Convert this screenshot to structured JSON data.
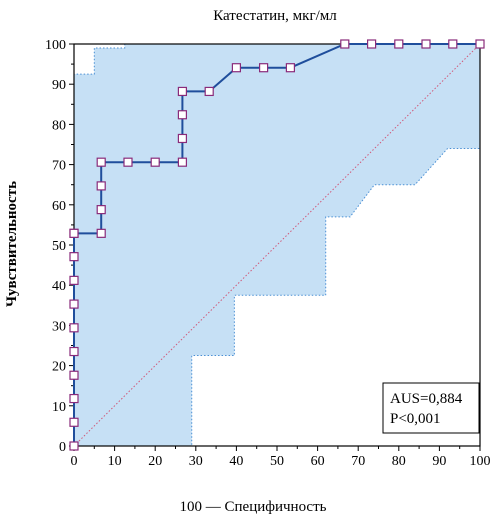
{
  "chart_data": {
    "type": "line",
    "title": "Катестатин, мкг/мл",
    "xlabel": "100 — Специфичность",
    "ylabel": "Чувствительность",
    "xlim": [
      0,
      100
    ],
    "ylim": [
      0,
      100
    ],
    "xticks": [
      0,
      10,
      20,
      30,
      40,
      50,
      60,
      70,
      80,
      90,
      100
    ],
    "yticks": [
      0,
      10,
      20,
      30,
      40,
      50,
      60,
      70,
      80,
      90,
      100
    ],
    "grid": false,
    "diagonal_reference": true,
    "colors": {
      "roc_line": "#1f4e9c",
      "marker_edge": "#8a2b7a",
      "ci_fill": "#c6e0f5",
      "ci_edge": "#4a8fd4",
      "diagonal": "#d05a7a"
    },
    "roc": {
      "x": [
        0,
        0,
        0,
        0,
        0,
        0,
        0,
        0,
        0,
        0,
        0,
        6.7,
        6.7,
        6.7,
        6.7,
        13.3,
        20,
        26.7,
        26.7,
        26.7,
        26.7,
        33.3,
        40,
        46.7,
        53.3,
        66.7,
        73.3,
        80,
        86.7,
        93.3,
        100
      ],
      "y": [
        0,
        5.9,
        11.8,
        17.6,
        23.5,
        29.4,
        35.3,
        41.2,
        47.1,
        52.9,
        52.9,
        52.9,
        58.8,
        64.7,
        70.6,
        70.6,
        70.6,
        70.6,
        76.5,
        82.4,
        88.2,
        88.2,
        94.1,
        94.1,
        94.1,
        100,
        100,
        100,
        100,
        100,
        100
      ]
    },
    "ci_upper": {
      "x": [
        0,
        0,
        5,
        5,
        12.5,
        12.5,
        100
      ],
      "y": [
        0,
        92.5,
        92.5,
        99,
        99,
        100,
        100
      ]
    },
    "ci_lower": {
      "x": [
        0,
        29,
        29,
        39.5,
        39.5,
        62,
        62,
        68,
        74,
        74,
        84,
        92,
        92,
        100
      ],
      "y": [
        0,
        0,
        22.5,
        22.5,
        37.5,
        37.5,
        57,
        57,
        65,
        65,
        65,
        74,
        74,
        74
      ]
    },
    "annotation": {
      "auc": "AUS=0,884",
      "p": "P<0,001",
      "position": "bottom-right"
    }
  }
}
